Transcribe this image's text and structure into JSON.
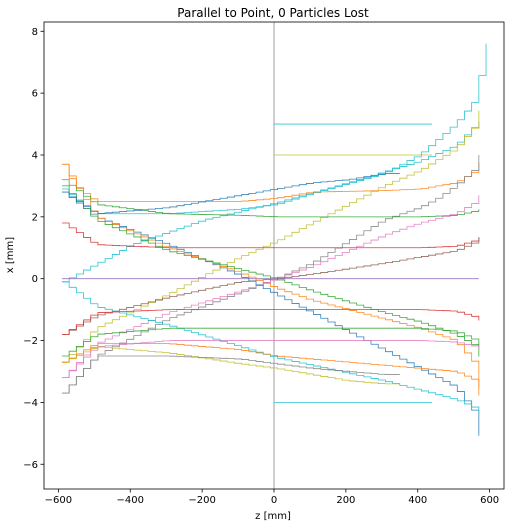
{
  "chart_data": {
    "type": "line",
    "title": "Parallel to Point, 0 Particles Lost",
    "xlabel": "z [mm]",
    "ylabel": "x [mm]",
    "xlim": [
      -640,
      640
    ],
    "ylim": [
      -6.8,
      8.3
    ],
    "xticks": [
      -600,
      -400,
      -200,
      0,
      200,
      400,
      600
    ],
    "xtick_labels": [
      "−600",
      "−400",
      "−200",
      "0",
      "200",
      "400",
      "600"
    ],
    "yticks": [
      -6,
      -4,
      -2,
      0,
      2,
      4,
      6,
      8
    ],
    "ytick_labels": [
      "−6",
      "−4",
      "−2",
      "0",
      "2",
      "4",
      "6",
      "8"
    ],
    "grid": false,
    "reference_line": {
      "axis": "x",
      "value": 0
    },
    "step_size": 20,
    "series_style": "stepped trajectories",
    "series": [
      {
        "color": "#17becf",
        "x": [
          -590,
          -500,
          -300,
          -100,
          0,
          100,
          300,
          400,
          500,
          550,
          580,
          590
        ],
        "y": [
          2.9,
          2.1,
          2.1,
          2.25,
          2.4,
          2.75,
          3.4,
          4.0,
          5.0,
          5.7,
          7.0,
          7.6
        ]
      },
      {
        "color": "#17becf",
        "x": [
          0,
          100,
          200,
          300,
          400,
          450
        ],
        "y": [
          5.0,
          5.0,
          5.0,
          5.0,
          5.0,
          5.0
        ]
      },
      {
        "color": "#17becf",
        "x": [
          -590,
          -400,
          -200,
          0,
          200,
          400,
          500,
          560,
          585
        ],
        "y": [
          -0.1,
          1.1,
          1.9,
          2.45,
          3.1,
          3.8,
          4.3,
          5.0,
          5.2
        ]
      },
      {
        "color": "#ff7f0e",
        "x": [
          -590,
          -560,
          -500,
          -300,
          -100,
          0,
          100,
          300,
          400,
          500,
          560,
          585
        ],
        "y": [
          3.7,
          3.0,
          2.5,
          2.5,
          2.5,
          2.6,
          2.8,
          2.85,
          2.9,
          3.1,
          3.5,
          4.1
        ]
      },
      {
        "color": "#bcbd22",
        "x": [
          -590,
          -500,
          -300,
          -100,
          0,
          100,
          300,
          400,
          500,
          560,
          585
        ],
        "y": [
          -2.7,
          -1.6,
          -0.5,
          0.7,
          1.2,
          1.8,
          3.0,
          3.5,
          4.2,
          5.0,
          6.1
        ]
      },
      {
        "color": "#bcbd22",
        "x": [
          0,
          100,
          200,
          300,
          400,
          450
        ],
        "y": [
          4.0,
          4.0,
          4.0,
          4.0,
          4.0,
          4.0
        ]
      },
      {
        "color": "#7f7f7f",
        "x": [
          -590,
          -500,
          -300,
          -100,
          0,
          100,
          200,
          300,
          400,
          450,
          500,
          560,
          585
        ],
        "y": [
          -3.7,
          -2.5,
          -1.3,
          -0.45,
          0.0,
          0.5,
          1.2,
          1.9,
          2.3,
          2.6,
          3.0,
          3.6,
          4.6
        ]
      },
      {
        "color": "#e377c2",
        "x": [
          -590,
          -500,
          -300,
          -100,
          0,
          100,
          200,
          300,
          400,
          500,
          560,
          585
        ],
        "y": [
          -3.2,
          -2.1,
          -1.1,
          -0.4,
          0.0,
          0.4,
          0.9,
          1.4,
          1.8,
          2.1,
          2.5,
          3.0
        ]
      },
      {
        "color": "#2ca02c",
        "x": [
          -590,
          -500,
          -300,
          -100,
          0,
          100,
          300,
          400,
          500,
          560,
          585
        ],
        "y": [
          3.2,
          2.4,
          2.1,
          2.05,
          2.0,
          2.0,
          2.0,
          2.0,
          2.05,
          2.2,
          2.3
        ]
      },
      {
        "color": "#d62728",
        "x": [
          -590,
          -500,
          -300,
          -100,
          0,
          100,
          300,
          400,
          500,
          560,
          585
        ],
        "y": [
          1.8,
          1.1,
          1.0,
          1.0,
          1.0,
          1.0,
          1.0,
          1.0,
          1.05,
          1.25,
          1.5
        ]
      },
      {
        "color": "#8c564b",
        "x": [
          -590,
          -500,
          -300,
          -100,
          0,
          100,
          300,
          400,
          500,
          560,
          585
        ],
        "y": [
          -1.8,
          -1.2,
          -0.6,
          -0.1,
          0.0,
          0.15,
          0.5,
          0.7,
          0.9,
          1.2,
          1.5
        ]
      },
      {
        "color": "#9467bd",
        "x": [
          -590,
          -400,
          -200,
          0,
          200,
          400,
          585
        ],
        "y": [
          0.0,
          0.0,
          0.0,
          0.0,
          0.0,
          0.0,
          0.0
        ]
      },
      {
        "color": "#d62728",
        "x": [
          -590,
          -500,
          -300,
          -100,
          0,
          100,
          300,
          400,
          500,
          560,
          585
        ],
        "y": [
          -1.8,
          -1.1,
          -1.0,
          -1.0,
          -1.0,
          -1.0,
          -1.0,
          -1.0,
          -1.05,
          -1.25,
          -1.5
        ]
      },
      {
        "color": "#1f77b4",
        "x": [
          -590,
          -500,
          -300,
          -100,
          0,
          100,
          300,
          400,
          500,
          560,
          585
        ],
        "y": [
          2.8,
          2.0,
          1.1,
          0.1,
          -0.5,
          -1.1,
          -2.3,
          -2.9,
          -3.5,
          -4.4,
          -6.1
        ]
      },
      {
        "color": "#ff7f0e",
        "x": [
          -590,
          -500,
          -300,
          -100,
          0,
          100,
          300,
          400,
          500,
          560,
          585
        ],
        "y": [
          3.7,
          2.0,
          1.0,
          0.2,
          -0.3,
          -0.7,
          -1.3,
          -1.6,
          -2.0,
          -2.8,
          -4.6
        ]
      },
      {
        "color": "#2ca02c",
        "x": [
          -590,
          -500,
          -300,
          -100,
          0,
          100,
          300,
          400,
          500,
          560,
          585
        ],
        "y": [
          3.0,
          1.9,
          0.9,
          0.3,
          0.0,
          -0.4,
          -1.1,
          -1.4,
          -1.8,
          -2.2,
          -3.0
        ]
      },
      {
        "color": "#e377c2",
        "x": [
          -590,
          -500,
          -300,
          -100,
          0,
          100,
          300,
          400,
          500,
          560,
          585
        ],
        "y": [
          -3.2,
          -2.2,
          -2.0,
          -2.0,
          -2.0,
          -2.0,
          -2.0,
          -2.0,
          -2.05,
          -2.2,
          -2.4
        ]
      },
      {
        "color": "#17becf",
        "x": [
          -590,
          -500,
          -300,
          -100,
          0,
          100,
          300,
          400,
          500,
          560,
          585
        ],
        "y": [
          -0.1,
          -0.9,
          -1.5,
          -2.2,
          -2.55,
          -2.8,
          -3.3,
          -3.6,
          -3.9,
          -4.2,
          -4.6
        ]
      },
      {
        "color": "#17becf",
        "x": [
          0,
          100,
          200,
          300,
          400,
          450
        ],
        "y": [
          -4.0,
          -4.0,
          -4.0,
          -4.0,
          -4.0,
          -4.0
        ]
      },
      {
        "color": "#bcbd22",
        "x": [
          -590,
          -500,
          -300,
          -100,
          0,
          100,
          200,
          300,
          350
        ],
        "y": [
          -2.7,
          -2.2,
          -2.4,
          -2.75,
          -2.9,
          -3.1,
          -3.3,
          -3.4,
          -3.4
        ]
      },
      {
        "color": "#7f7f7f",
        "x": [
          -590,
          -500,
          -300,
          -100,
          0,
          100,
          200,
          300,
          350
        ],
        "y": [
          -3.7,
          -2.5,
          -2.5,
          -2.6,
          -2.75,
          -2.9,
          -3.0,
          -3.1,
          -3.1
        ]
      },
      {
        "color": "#1f77b4",
        "x": [
          -590,
          -500,
          -300,
          -100,
          0,
          100,
          200,
          300,
          350
        ],
        "y": [
          2.8,
          2.1,
          2.3,
          2.7,
          2.9,
          3.1,
          3.2,
          3.4,
          3.4
        ]
      },
      {
        "color": "#ff7f0e",
        "x": [
          -590,
          -500,
          -300,
          -100,
          0,
          100,
          300,
          400,
          500,
          560,
          585
        ],
        "y": [
          -2.7,
          -2.1,
          -2.1,
          -2.3,
          -2.5,
          -2.6,
          -2.8,
          -2.9,
          -3.0,
          -3.3,
          -4.5
        ]
      },
      {
        "color": "#2ca02c",
        "x": [
          -590,
          -500,
          -300,
          -100,
          0,
          100,
          300,
          400,
          500,
          560,
          585
        ],
        "y": [
          -2.5,
          -1.8,
          -1.6,
          -1.6,
          -1.6,
          -1.6,
          -1.6,
          -1.6,
          -1.7,
          -2.0,
          -2.4
        ]
      }
    ]
  }
}
